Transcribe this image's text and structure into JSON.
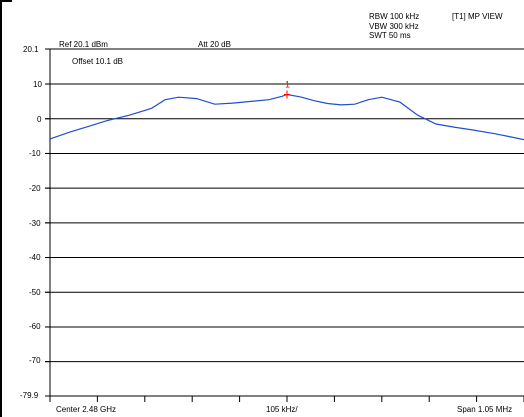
{
  "header": {
    "ref_label": "Ref 20.1 dBm",
    "att_label": "Att  20 dB",
    "offset_label": "Offset 10.1 dB",
    "rbw": "RBW 100 kHz",
    "vbw": "VBW 300 kHz",
    "swt": "SWT 50 ms",
    "view_label": "[T1] MP VIEW"
  },
  "footer": {
    "center_label": "Center 2.48 GHz",
    "span_per_div": "105 kHz/",
    "span_label": "Span 1.05 MHz"
  },
  "marker": {
    "label": "1",
    "color": "#ff0000"
  },
  "colors": {
    "trace": "#1f4fd0",
    "grid": "#000000",
    "background": "#ffffff"
  },
  "chart_data": {
    "type": "line",
    "xlabel": "",
    "ylabel": "",
    "ylim": [
      -79.9,
      20.1
    ],
    "yticks": [
      "20.1",
      "10",
      "0",
      "-10",
      "-20",
      "-30",
      "-40",
      "-50",
      "-60",
      "-70",
      "-79.9"
    ],
    "x_center_ghz": 2.48,
    "xlim_mhz": [
      2479.475,
      2480.525
    ],
    "series": [
      {
        "x": [
          2479.475,
          2479.52,
          2479.56,
          2479.6,
          2479.65,
          2479.7,
          2479.73,
          2479.76,
          2479.8,
          2479.84,
          2479.88,
          2479.92,
          2479.96,
          2479.99,
          2480.0,
          2480.03,
          2480.06,
          2480.09,
          2480.12,
          2480.15,
          2480.18,
          2480.21,
          2480.25,
          2480.29,
          2480.33,
          2480.37,
          2480.41,
          2480.46,
          2480.49,
          2480.525
        ],
        "y": [
          -5.8,
          -3.8,
          -2.2,
          -0.6,
          1.0,
          3.0,
          5.5,
          6.2,
          5.8,
          4.2,
          4.5,
          5.0,
          5.5,
          6.5,
          7.0,
          6.3,
          5.2,
          4.4,
          4.0,
          4.2,
          5.5,
          6.2,
          4.8,
          1.0,
          -1.5,
          -2.4,
          -3.2,
          -4.3,
          -5.1,
          -6.0
        ]
      }
    ],
    "markers": [
      {
        "label": "1",
        "x": 2480.0,
        "y": 7.0
      }
    ]
  }
}
